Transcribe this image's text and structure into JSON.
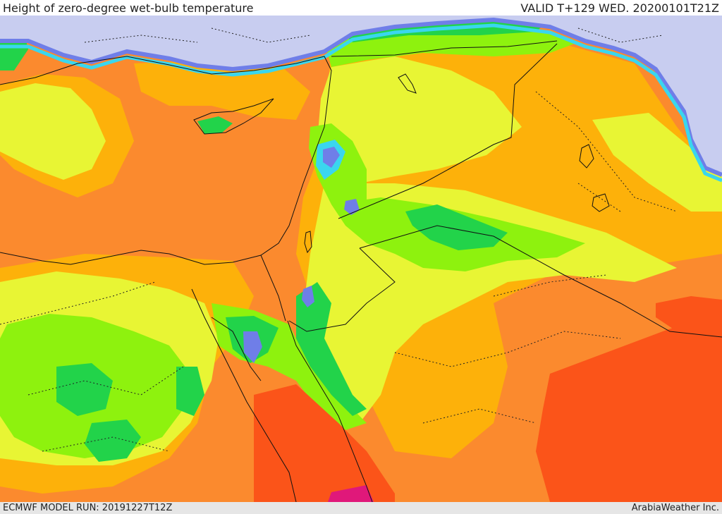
{
  "header": {
    "title": "Height of zero-degree wet-bulb temperature",
    "valid": "VALID T+129 WED. 20200101T21Z"
  },
  "footer": {
    "model_run": "ECMWF MODEL RUN: 20191227T12Z",
    "credit": "ArabiaWeather Inc."
  },
  "map": {
    "region": "Eastern Mediterranean / Middle East",
    "palette": {
      "sea_bg": "#fb8a2e",
      "lowest": "#c8cdf0",
      "very_low": "#6f7ee8",
      "low": "#3ad6ee",
      "low_mid": "#22d34a",
      "mid": "#8ef20e",
      "mid_high": "#e8f534",
      "high": "#fdb10a",
      "higher": "#fb8a2e",
      "highest": "#fb5419",
      "extreme": "#e0187a",
      "border": "#111111",
      "admin_border": "#222222"
    }
  }
}
